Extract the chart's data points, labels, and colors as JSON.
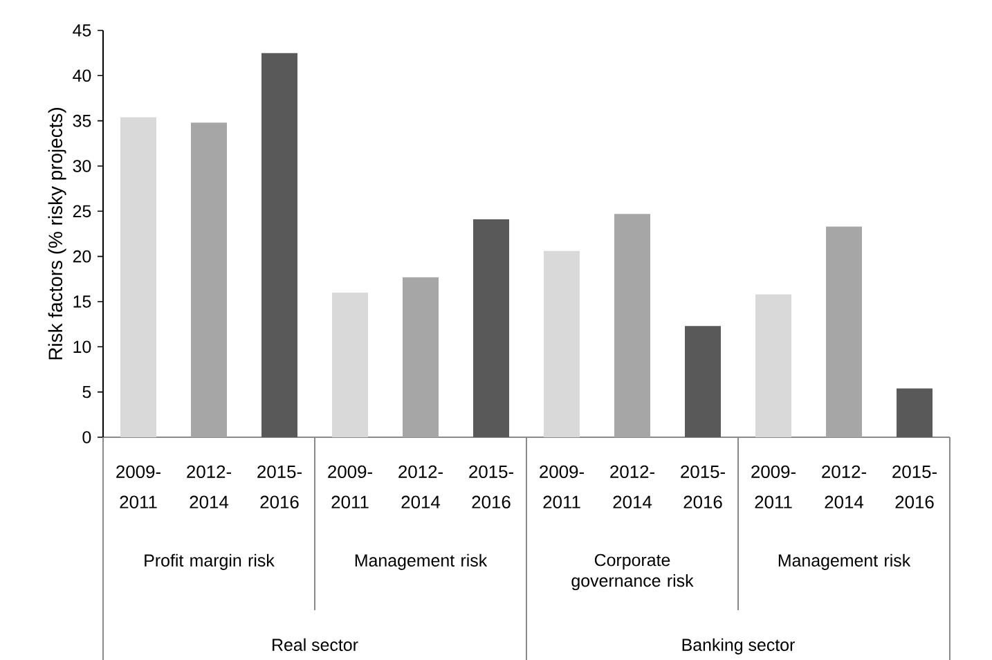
{
  "chart_data": {
    "type": "bar",
    "ylabel": "Risk factors (% risky projects)",
    "categories": [
      "2009-2011",
      "2012-2014",
      "2015-2016",
      "2009-2011",
      "2012-2014",
      "2015-2016",
      "2009-2011",
      "2012-2014",
      "2015-2016",
      "2009-2011",
      "2012-2014",
      "2015-2016"
    ],
    "values": [
      35.4,
      34.8,
      42.5,
      16.0,
      17.7,
      24.1,
      20.6,
      24.7,
      12.3,
      15.8,
      23.3,
      5.4
    ],
    "colors": [
      "#d9d9d9",
      "#a6a6a6",
      "#595959",
      "#d9d9d9",
      "#a6a6a6",
      "#595959",
      "#d9d9d9",
      "#a6a6a6",
      "#595959",
      "#d9d9d9",
      "#a6a6a6",
      "#595959"
    ],
    "ylim": [
      0,
      45
    ],
    "yticks": [
      0,
      5,
      10,
      15,
      20,
      25,
      30,
      35,
      40,
      45
    ],
    "annotations": [
      "Profit margin risk",
      "Management risk",
      "Corporate governance risk",
      "Management risk",
      "Real sector",
      "Banking sector"
    ]
  }
}
